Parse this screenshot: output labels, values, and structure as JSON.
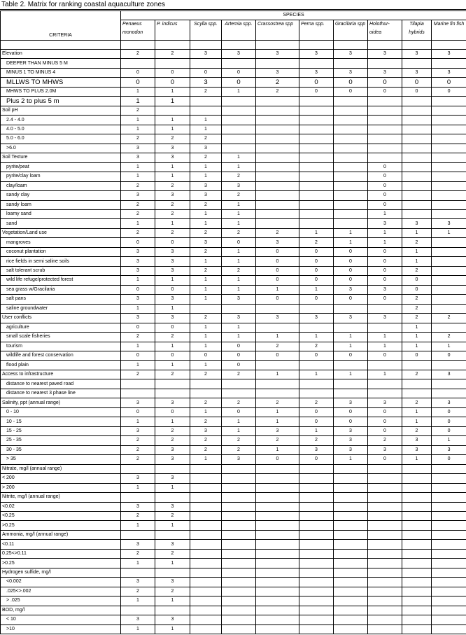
{
  "title": "Table 2.  Matrix for ranking coastal aquaculture zones",
  "criteria_header": "CRITERIA",
  "species_header": "SPECIES",
  "species": [
    "Penaeus monodon",
    "P. indicus",
    "Scylla spp.",
    "Artemia spp.",
    "Crassostrea spp",
    "Perna spp.",
    "Gracilaria spp",
    "Holothur-oidea",
    "Tilapia hybrids",
    "Marine fin fish"
  ],
  "rows": [
    {
      "label": "Elevation",
      "type": "header",
      "values": [
        "2",
        "2",
        "3",
        "3",
        "3",
        "3",
        "3",
        "3",
        "3",
        "3"
      ]
    },
    {
      "label": "DEEPER THAN MINUS 5 M",
      "type": "sub",
      "values": [
        "",
        "",
        "",
        "",
        "",
        "",
        "",
        "",
        "",
        ""
      ]
    },
    {
      "label": "MINUS 1 TO MINUS 4",
      "type": "sub",
      "values": [
        "0",
        "0",
        "0",
        "0",
        "3",
        "3",
        "3",
        "3",
        "3",
        "3"
      ]
    },
    {
      "label": "MLLWS TO MHWS",
      "type": "sub",
      "big": true,
      "values": [
        "0",
        "0",
        "3",
        "0",
        "2",
        "0",
        "0",
        "0",
        "0",
        "0"
      ]
    },
    {
      "label": "MHWS TO PLUS 2.0M",
      "type": "sub",
      "values": [
        "1",
        "1",
        "2",
        "1",
        "2",
        "0",
        "0",
        "0",
        "0",
        "0"
      ]
    },
    {
      "label": "Plus 2 to plus 5 m",
      "type": "sub",
      "big": true,
      "values": [
        "1",
        "1",
        "",
        "",
        "",
        "",
        "",
        "",
        "",
        ""
      ]
    },
    {
      "label": "Soil pH",
      "type": "header",
      "values": [
        "2",
        "",
        "",
        "",
        "",
        "",
        "",
        "",
        "",
        ""
      ]
    },
    {
      "label": "2.4 - 4.0",
      "type": "sub",
      "values": [
        "1",
        "1",
        "1",
        "",
        "",
        "",
        "",
        "",
        "",
        ""
      ]
    },
    {
      "label": "4.0 - 5.0",
      "type": "sub",
      "values": [
        "1",
        "1",
        "1",
        "",
        "",
        "",
        "",
        "",
        "",
        ""
      ]
    },
    {
      "label": "5.0 - 6.0",
      "type": "sub",
      "values": [
        "2",
        "2",
        "2",
        "",
        "",
        "",
        "",
        "",
        "",
        ""
      ]
    },
    {
      "label": ">6.0",
      "type": "sub",
      "values": [
        "3",
        "3",
        "3",
        "",
        "",
        "",
        "",
        "",
        "",
        ""
      ]
    },
    {
      "label": "Soil Texture",
      "type": "header",
      "values": [
        "3",
        "3",
        "2",
        "1",
        "",
        "",
        "",
        "",
        "",
        ""
      ]
    },
    {
      "label": "pyrite/peat",
      "type": "sub",
      "values": [
        "1",
        "1",
        "1",
        "1",
        "",
        "",
        "",
        "0",
        "",
        ""
      ]
    },
    {
      "label": "pyrite/clay loam",
      "type": "sub",
      "values": [
        "1",
        "1",
        "1",
        "2",
        "",
        "",
        "",
        "0",
        "",
        ""
      ]
    },
    {
      "label": "clay/loam",
      "type": "sub",
      "values": [
        "2",
        "2",
        "3",
        "3",
        "",
        "",
        "",
        "0",
        "",
        ""
      ]
    },
    {
      "label": "sandy clay",
      "type": "sub",
      "values": [
        "3",
        "3",
        "3",
        "2",
        "",
        "",
        "",
        "0",
        "",
        ""
      ]
    },
    {
      "label": "sandy loam",
      "type": "sub",
      "values": [
        "2",
        "2",
        "2",
        "1",
        "",
        "",
        "",
        "0",
        "",
        ""
      ]
    },
    {
      "label": "loamy sand",
      "type": "sub",
      "values": [
        "2",
        "2",
        "1",
        "1",
        "",
        "",
        "",
        "1",
        "",
        ""
      ]
    },
    {
      "label": "sand",
      "type": "sub",
      "values": [
        "1",
        "1",
        "1",
        "1",
        "",
        "",
        "",
        "3",
        "3",
        "3"
      ]
    },
    {
      "label": "Vegetation/Land use",
      "type": "header",
      "values": [
        "2",
        "2",
        "2",
        "2",
        "2",
        "1",
        "1",
        "1",
        "1",
        "1"
      ]
    },
    {
      "label": "mangroves",
      "type": "sub",
      "values": [
        "0",
        "0",
        "3",
        "0",
        "3",
        "2",
        "1",
        "1",
        "2",
        ""
      ]
    },
    {
      "label": "coconut plantation",
      "type": "sub",
      "values": [
        "3",
        "3",
        "2",
        "1",
        "0",
        "0",
        "0",
        "0",
        "1",
        ""
      ]
    },
    {
      "label": "rice fields in semi saline soils",
      "type": "sub",
      "values": [
        "3",
        "3",
        "1",
        "1",
        "0",
        "0",
        "0",
        "0",
        "1",
        ""
      ]
    },
    {
      "label": "salt tolerant scrub",
      "type": "sub",
      "values": [
        "3",
        "3",
        "2",
        "2",
        "0",
        "0",
        "0",
        "0",
        "2",
        ""
      ]
    },
    {
      "label": "wild life refuge/protected forest",
      "type": "sub",
      "values": [
        "1",
        "1",
        "1",
        "1",
        "0",
        "0",
        "0",
        "0",
        "0",
        ""
      ]
    },
    {
      "label": "sea grass w/Gracilaria",
      "type": "sub",
      "values": [
        "0",
        "0",
        "1",
        "1",
        "1",
        "1",
        "3",
        "3",
        "0",
        ""
      ]
    },
    {
      "label": "salt pans",
      "type": "sub",
      "values": [
        "3",
        "3",
        "1",
        "3",
        "0",
        "0",
        "0",
        "0",
        "2",
        ""
      ]
    },
    {
      "label": "saline groundwater",
      "type": "sub",
      "values": [
        "1",
        "1",
        "",
        "",
        "",
        "",
        "",
        "",
        "2",
        ""
      ]
    },
    {
      "label": "User conflicts",
      "type": "header",
      "values": [
        "3",
        "3",
        "2",
        "3",
        "3",
        "3",
        "3",
        "3",
        "2",
        "2"
      ]
    },
    {
      "label": "agriculture",
      "type": "sub",
      "values": [
        "0",
        "0",
        "1",
        "1",
        "",
        "",
        "",
        "",
        "1",
        ""
      ]
    },
    {
      "label": "small scale fisheries",
      "type": "sub",
      "values": [
        "2",
        "2",
        "1",
        "1",
        "1",
        "1",
        "1",
        "1",
        "1",
        "2"
      ]
    },
    {
      "label": "tourism",
      "type": "sub",
      "values": [
        "1",
        "1",
        "1",
        "0",
        "2",
        "2",
        "1",
        "1",
        "1",
        "1"
      ]
    },
    {
      "label": "wildlife and forest conservation",
      "type": "sub",
      "values": [
        "0",
        "0",
        "0",
        "0",
        "0",
        "0",
        "0",
        "0",
        "0",
        "0"
      ]
    },
    {
      "label": "flood plain",
      "type": "sub",
      "values": [
        "1",
        "1",
        "1",
        "0",
        "",
        "",
        "",
        "",
        "",
        ""
      ]
    },
    {
      "label": "Access to infrastructure",
      "type": "header",
      "values": [
        "2",
        "2",
        "2",
        "2",
        "1",
        "1",
        "1",
        "1",
        "2",
        "3"
      ]
    },
    {
      "label": "distance to nearest paved road",
      "type": "sub",
      "values": [
        "",
        "",
        "",
        "",
        "",
        "",
        "",
        "",
        "",
        ""
      ]
    },
    {
      "label": "distance to nearest 3 phase line",
      "type": "sub",
      "values": [
        "",
        "",
        "",
        "",
        "",
        "",
        "",
        "",
        "",
        ""
      ]
    },
    {
      "label": "Salinity, ppt (annual range)",
      "type": "header",
      "values": [
        "3",
        "3",
        "2",
        "2",
        "2",
        "2",
        "3",
        "3",
        "2",
        "3"
      ]
    },
    {
      "label": "0 - 10",
      "type": "sub",
      "values": [
        "0",
        "0",
        "1",
        "0",
        "1",
        "0",
        "0",
        "0",
        "1",
        "0"
      ]
    },
    {
      "label": "10 - 15",
      "type": "sub",
      "values": [
        "1",
        "1",
        "2",
        "1",
        "1",
        "0",
        "0",
        "0",
        "1",
        "0"
      ]
    },
    {
      "label": "15 - 25",
      "type": "sub",
      "values": [
        "3",
        "2",
        "3",
        "1",
        "3",
        "1",
        "3",
        "0",
        "2",
        "0"
      ]
    },
    {
      "label": "25 - 35",
      "type": "sub",
      "values": [
        "2",
        "2",
        "2",
        "2",
        "2",
        "2",
        "3",
        "2",
        "3",
        "1"
      ]
    },
    {
      "label": "30 - 35",
      "type": "sub",
      "values": [
        "2",
        "3",
        "2",
        "2",
        "1",
        "3",
        "3",
        "3",
        "3",
        "3"
      ]
    },
    {
      "label": "> 35",
      "type": "sub",
      "values": [
        "2",
        "3",
        "1",
        "3",
        "0",
        "0",
        "1",
        "0",
        "1",
        "0"
      ]
    },
    {
      "label": "Nitrate, mg/l (annual range)",
      "type": "header",
      "values": [
        "",
        "",
        "",
        "",
        "",
        "",
        "",
        "",
        "",
        ""
      ]
    },
    {
      "label": "< 200",
      "type": "header",
      "values": [
        "3",
        "3",
        "",
        "",
        "",
        "",
        "",
        "",
        "",
        ""
      ]
    },
    {
      "label": "> 200",
      "type": "header",
      "values": [
        "1",
        "1",
        "",
        "",
        "",
        "",
        "",
        "",
        "",
        ""
      ]
    },
    {
      "label": "Nitrite, mg/l  (annual range)",
      "type": "header",
      "values": [
        "",
        "",
        "",
        "",
        "",
        "",
        "",
        "",
        "",
        ""
      ]
    },
    {
      "label": "<0.02",
      "type": "header",
      "values": [
        "3",
        "3",
        "",
        "",
        "",
        "",
        "",
        "",
        "",
        ""
      ]
    },
    {
      "label": "<0.25",
      "type": "header",
      "values": [
        "2",
        "2",
        "",
        "",
        "",
        "",
        "",
        "",
        "",
        ""
      ]
    },
    {
      "label": ">0.25",
      "type": "header",
      "values": [
        "1",
        "1",
        "",
        "",
        "",
        "",
        "",
        "",
        "",
        ""
      ]
    },
    {
      "label": "Ammonia, mg/l (annual range)",
      "type": "header",
      "values": [
        "",
        "",
        "",
        "",
        "",
        "",
        "",
        "",
        "",
        ""
      ]
    },
    {
      "label": "<0.11",
      "type": "header",
      "values": [
        "3",
        "3",
        "",
        "",
        "",
        "",
        "",
        "",
        "",
        ""
      ]
    },
    {
      "label": "0.25<>0.11",
      "type": "header",
      "values": [
        "2",
        "2",
        "",
        "",
        "",
        "",
        "",
        "",
        "",
        ""
      ]
    },
    {
      "label": ">0.25",
      "type": "header",
      "values": [
        "1",
        "1",
        "",
        "",
        "",
        "",
        "",
        "",
        "",
        ""
      ]
    },
    {
      "label": "Hydrogen sulfide, mg/l",
      "type": "header",
      "values": [
        "",
        "",
        "",
        "",
        "",
        "",
        "",
        "",
        "",
        ""
      ]
    },
    {
      "label": "<0.002",
      "type": "sub",
      "values": [
        "3",
        "3",
        "",
        "",
        "",
        "",
        "",
        "",
        "",
        ""
      ]
    },
    {
      "label": ".025<>.002",
      "type": "sub",
      "values": [
        "2",
        "2",
        "",
        "",
        "",
        "",
        "",
        "",
        "",
        ""
      ]
    },
    {
      "label": "> .025",
      "type": "sub",
      "values": [
        "1",
        "1",
        "",
        "",
        "",
        "",
        "",
        "",
        "",
        ""
      ]
    },
    {
      "label": "BOD, mg/l",
      "type": "header",
      "values": [
        "",
        "",
        "",
        "",
        "",
        "",
        "",
        "",
        "",
        ""
      ]
    },
    {
      "label": "< 10",
      "type": "sub",
      "values": [
        "3",
        "3",
        "",
        "",
        "",
        "",
        "",
        "",
        "",
        ""
      ]
    },
    {
      "label": ">10",
      "type": "sub",
      "values": [
        "1",
        "1",
        "",
        "",
        "",
        "",
        "",
        "",
        "",
        ""
      ]
    }
  ]
}
